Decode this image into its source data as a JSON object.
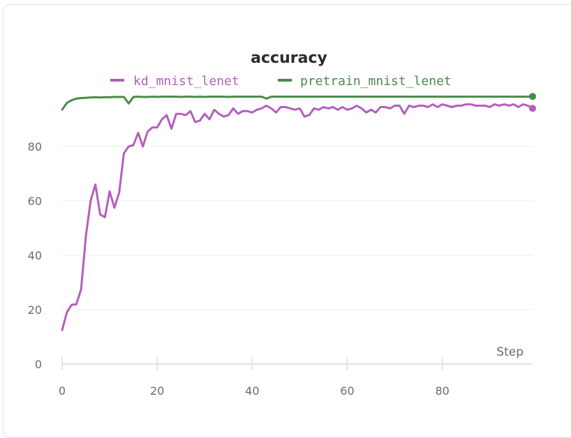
{
  "chart_data": {
    "type": "line",
    "title": "accuracy",
    "xlabel": "Step",
    "ylabel": "",
    "xlim": [
      0,
      99
    ],
    "ylim": [
      0,
      100
    ],
    "x_ticks": [
      0,
      20,
      40,
      60,
      80
    ],
    "y_ticks": [
      0,
      20,
      40,
      60,
      80
    ],
    "grid": true,
    "legend_position": "top",
    "series": [
      {
        "name": "kd_mnist_lenet",
        "color": "#b35fbd",
        "values": [
          12.5,
          19,
          21.8,
          22,
          27.5,
          47,
          60,
          66,
          55,
          54,
          63.5,
          57.5,
          63,
          77.5,
          80,
          80.5,
          85,
          80,
          85.5,
          87,
          87,
          90,
          91.5,
          86.5,
          92,
          92,
          91.5,
          93,
          89,
          89.5,
          92,
          90,
          93.5,
          92,
          91,
          91.5,
          94,
          92,
          93,
          93,
          92.5,
          93.5,
          94,
          95,
          94,
          92.5,
          94.5,
          94.5,
          94,
          93.5,
          94,
          91,
          91.5,
          94,
          93.5,
          94.5,
          94,
          94.5,
          93.5,
          94.5,
          93.5,
          94,
          95,
          94,
          92.5,
          93.5,
          92.5,
          94.5,
          94.5,
          94,
          95,
          95,
          92,
          95,
          94.5,
          95,
          95,
          94.5,
          95.5,
          94.5,
          95.5,
          95,
          94.5,
          95,
          95,
          95.5,
          95.5,
          95,
          95,
          95,
          94.5,
          95.5,
          95,
          95.5,
          95,
          95.5,
          94.5,
          95.5,
          95,
          94
        ]
      },
      {
        "name": "pretrain_mnist_lenet",
        "color": "#4a8a4a",
        "values": [
          93.5,
          96,
          97,
          97.6,
          97.8,
          97.9,
          98,
          98.1,
          98,
          98.1,
          98.1,
          98.2,
          98.2,
          98.2,
          95.8,
          98.2,
          98.3,
          98.2,
          98.2,
          98.3,
          98.2,
          98.3,
          98.3,
          98.3,
          98.3,
          98.2,
          98.3,
          98.3,
          98.2,
          98.3,
          98.2,
          98.3,
          98.3,
          98.3,
          98.3,
          98.2,
          98.3,
          98.3,
          98.3,
          98.3,
          98.3,
          98.3,
          98.3,
          97.6,
          98.3,
          98.3,
          98.3,
          98.3,
          98.3,
          98.3,
          98.3,
          98.3,
          98.3,
          98.3,
          98.3,
          98.3,
          98.3,
          98.3,
          98.3,
          98.3,
          98.3,
          98.3,
          98.3,
          98.3,
          98.3,
          98.3,
          98.3,
          98.3,
          98.3,
          98.3,
          98.3,
          98.3,
          98.3,
          98.3,
          98.3,
          98.3,
          98.3,
          98.3,
          98.3,
          98.3,
          98.3,
          98.3,
          98.3,
          98.3,
          98.3,
          98.3,
          98.3,
          98.3,
          98.3,
          98.3,
          98.3,
          98.3,
          98.3,
          98.3,
          98.3,
          98.3,
          98.3,
          98.3,
          98.3,
          98.4
        ]
      }
    ]
  }
}
